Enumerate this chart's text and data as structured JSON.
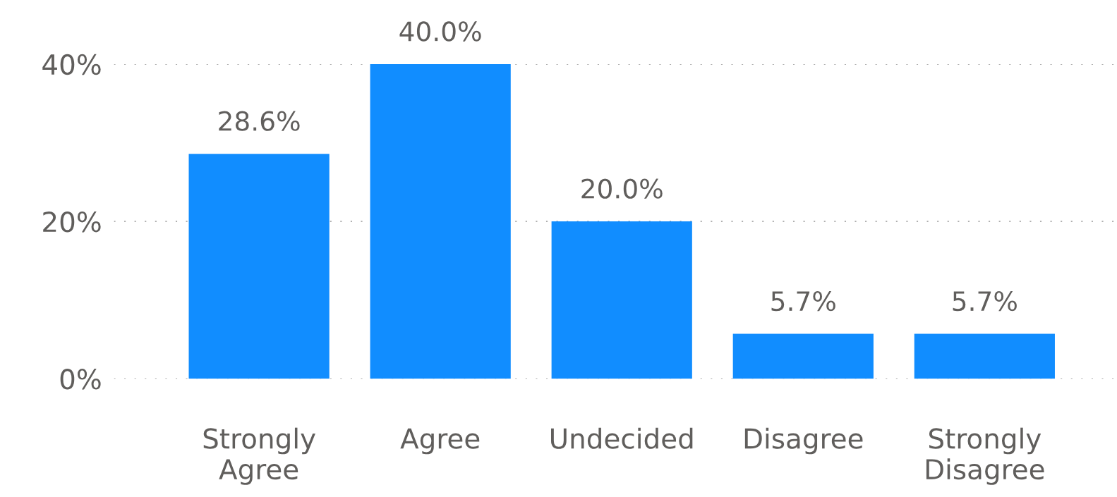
{
  "chart_data": {
    "type": "bar",
    "categories": [
      "Strongly\nAgree",
      "Agree",
      "Undecided",
      "Disagree",
      "Strongly\nDisagree"
    ],
    "values": [
      28.6,
      40.0,
      20.0,
      5.7,
      5.7
    ],
    "value_labels": [
      "28.6%",
      "40.0%",
      "20.0%",
      "5.7%",
      "5.7%"
    ],
    "color": "#118dff",
    "ylim": [
      0,
      40
    ],
    "yticks": [
      {
        "value": 0,
        "label": "0%"
      },
      {
        "value": 20,
        "label": "20%"
      },
      {
        "value": 40,
        "label": "40%"
      }
    ],
    "grid": "y"
  }
}
